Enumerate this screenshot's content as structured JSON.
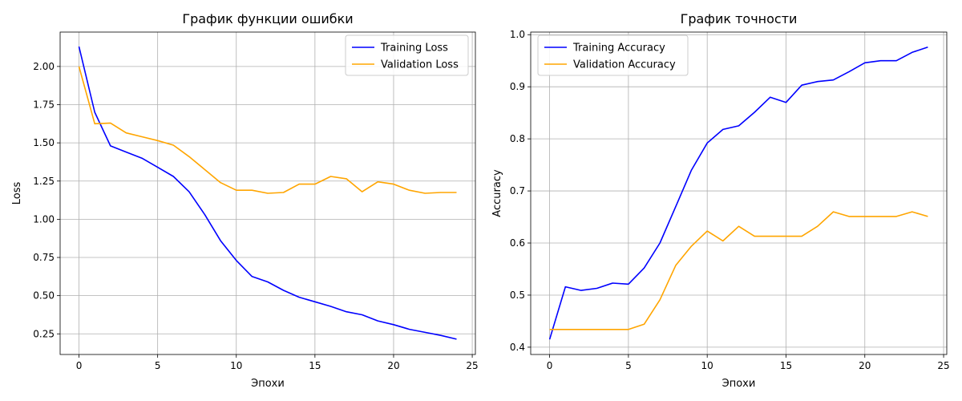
{
  "chart_data": [
    {
      "type": "line",
      "title": "График функции ошибки",
      "xlabel": "Эпохи",
      "ylabel": "Loss",
      "grid": true,
      "legend_position": "top-right",
      "xlim": [
        -1.2,
        25.2
      ],
      "ylim": [
        0.115,
        2.225
      ],
      "xticks": [
        0,
        5,
        10,
        15,
        20,
        25
      ],
      "yticks": [
        0.25,
        0.5,
        0.75,
        1.0,
        1.25,
        1.5,
        1.75,
        2.0
      ],
      "ytick_labels": [
        "0.25",
        "0.50",
        "0.75",
        "1.00",
        "1.25",
        "1.50",
        "1.75",
        "2.00"
      ],
      "x": [
        0,
        1,
        2,
        3,
        4,
        5,
        6,
        7,
        8,
        9,
        10,
        11,
        12,
        13,
        14,
        15,
        16,
        17,
        18,
        19,
        20,
        21,
        22,
        23,
        24
      ],
      "series": [
        {
          "name": "Training Loss",
          "color": "#0000ff",
          "values": [
            2.13,
            1.7,
            1.48,
            1.44,
            1.4,
            1.34,
            1.28,
            1.18,
            1.03,
            0.86,
            0.73,
            0.625,
            0.59,
            0.535,
            0.49,
            0.46,
            0.43,
            0.395,
            0.375,
            0.335,
            0.31,
            0.28,
            0.26,
            0.24,
            0.215
          ]
        },
        {
          "name": "Validation Loss",
          "color": "#ffa500",
          "values": [
            2.0,
            1.625,
            1.63,
            1.565,
            1.54,
            1.515,
            1.485,
            1.41,
            1.325,
            1.24,
            1.19,
            1.19,
            1.17,
            1.175,
            1.23,
            1.23,
            1.28,
            1.265,
            1.18,
            1.245,
            1.23,
            1.19,
            1.17,
            1.175,
            1.175
          ]
        }
      ]
    },
    {
      "type": "line",
      "title": "График точности",
      "xlabel": "Эпохи",
      "ylabel": "Accuracy",
      "grid": true,
      "legend_position": "top-left",
      "xlim": [
        -1.2,
        25.2
      ],
      "ylim": [
        0.386,
        1.005
      ],
      "xticks": [
        0,
        5,
        10,
        15,
        20,
        25
      ],
      "yticks": [
        0.4,
        0.5,
        0.6,
        0.7,
        0.8,
        0.9,
        1.0
      ],
      "ytick_labels": [
        "0.4",
        "0.5",
        "0.6",
        "0.7",
        "0.8",
        "0.9",
        "1.0"
      ],
      "x": [
        0,
        1,
        2,
        3,
        4,
        5,
        6,
        7,
        8,
        9,
        10,
        11,
        12,
        13,
        14,
        15,
        16,
        17,
        18,
        19,
        20,
        21,
        22,
        23,
        24
      ],
      "series": [
        {
          "name": "Training Accuracy",
          "color": "#0000ff",
          "values": [
            0.415,
            0.516,
            0.509,
            0.513,
            0.523,
            0.521,
            0.552,
            0.6,
            0.67,
            0.74,
            0.792,
            0.818,
            0.825,
            0.851,
            0.88,
            0.87,
            0.903,
            0.91,
            0.913,
            0.929,
            0.946,
            0.95,
            0.95,
            0.966,
            0.976
          ]
        },
        {
          "name": "Validation Accuracy",
          "color": "#ffa500",
          "values": [
            0.434,
            0.434,
            0.434,
            0.434,
            0.434,
            0.434,
            0.444,
            0.491,
            0.557,
            0.594,
            0.623,
            0.604,
            0.632,
            0.613,
            0.613,
            0.613,
            0.613,
            0.632,
            0.66,
            0.651,
            0.651,
            0.651,
            0.651,
            0.66,
            0.651
          ]
        }
      ]
    }
  ]
}
